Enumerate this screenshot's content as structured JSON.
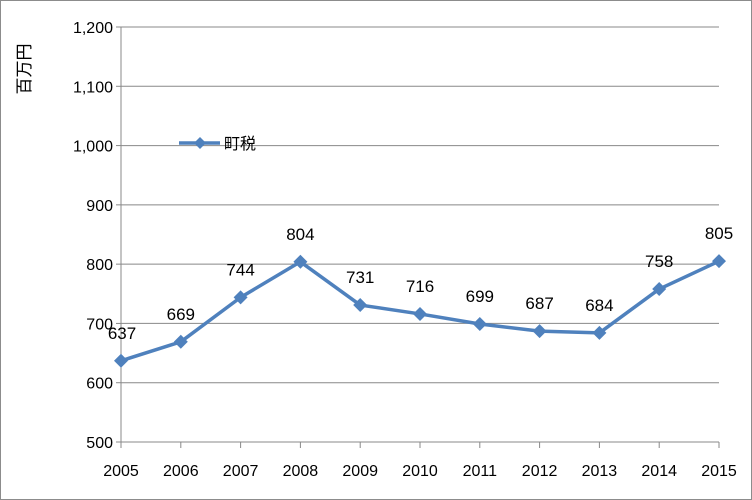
{
  "chart_data": {
    "type": "line",
    "ylabel": "百万円",
    "ylim": [
      500,
      1200
    ],
    "yticks": [
      500,
      600,
      700,
      800,
      900,
      1000,
      1100,
      1200
    ],
    "ytick_labels": [
      "500",
      "600",
      "700",
      "800",
      "900",
      "1,000",
      "1,100",
      "1,200"
    ],
    "categories": [
      "2005",
      "2006",
      "2007",
      "2008",
      "2009",
      "2010",
      "2011",
      "2012",
      "2013",
      "2014",
      "2015"
    ],
    "series": [
      {
        "name": "町税",
        "values": [
          637,
          669,
          744,
          804,
          731,
          716,
          699,
          687,
          684,
          758,
          805
        ],
        "data_labels": [
          "637",
          "669",
          "744",
          "804",
          "731",
          "716",
          "699",
          "687",
          "684",
          "758",
          "805"
        ],
        "color": "#4f81bd",
        "marker": "diamond"
      }
    ],
    "grid": true,
    "legend_position": "inside-top-left"
  }
}
